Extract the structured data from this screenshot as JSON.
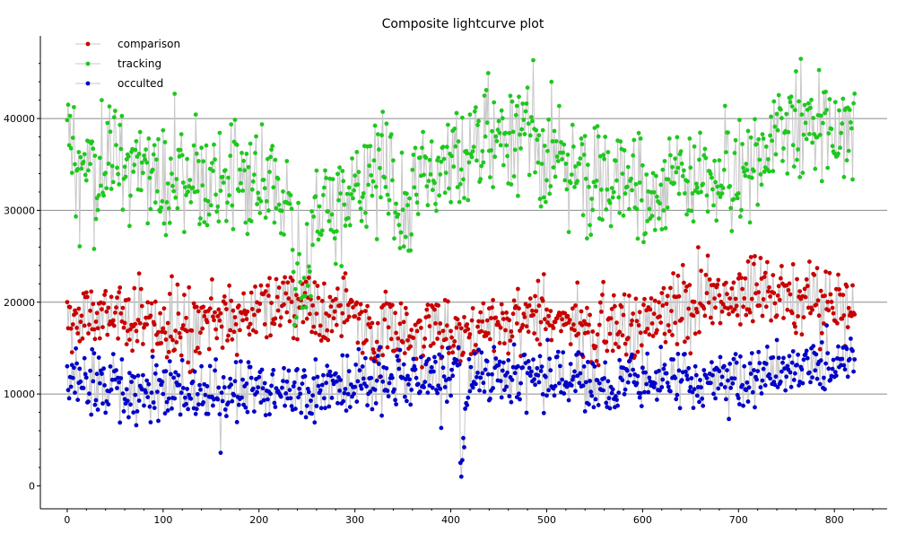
{
  "chart_data": {
    "type": "line",
    "title": "Composite lightcurve plot",
    "xlabel": "",
    "ylabel": "",
    "xlim": [
      -28,
      855
    ],
    "ylim": [
      -2500,
      49000
    ],
    "x_ticks": [
      0,
      100,
      200,
      300,
      400,
      500,
      600,
      700,
      800
    ],
    "x_tick_labels": [
      "0",
      "100",
      "200",
      "300",
      "400",
      "500",
      "600",
      "700",
      "800"
    ],
    "y_ticks": [
      0,
      10000,
      20000,
      30000,
      40000
    ],
    "y_tick_labels": [
      "0",
      "10000",
      "20000",
      "30000",
      "40000"
    ],
    "grid": "horizontal",
    "legend_position": "top-left",
    "n_points": 822,
    "series": [
      {
        "name": "comparison",
        "color": "#c80000",
        "values_summary": "mean ~18500, range ~13000-25000"
      },
      {
        "name": "tracking",
        "color": "#1ec81e",
        "values_summary": "mean ~34000, range ~20000-46500"
      },
      {
        "name": "occulted",
        "color": "#0000c8",
        "values_summary": "mean ~11500, range ~1000-16000, dips near x~415"
      }
    ],
    "connector_color": "#c8c8c8"
  }
}
